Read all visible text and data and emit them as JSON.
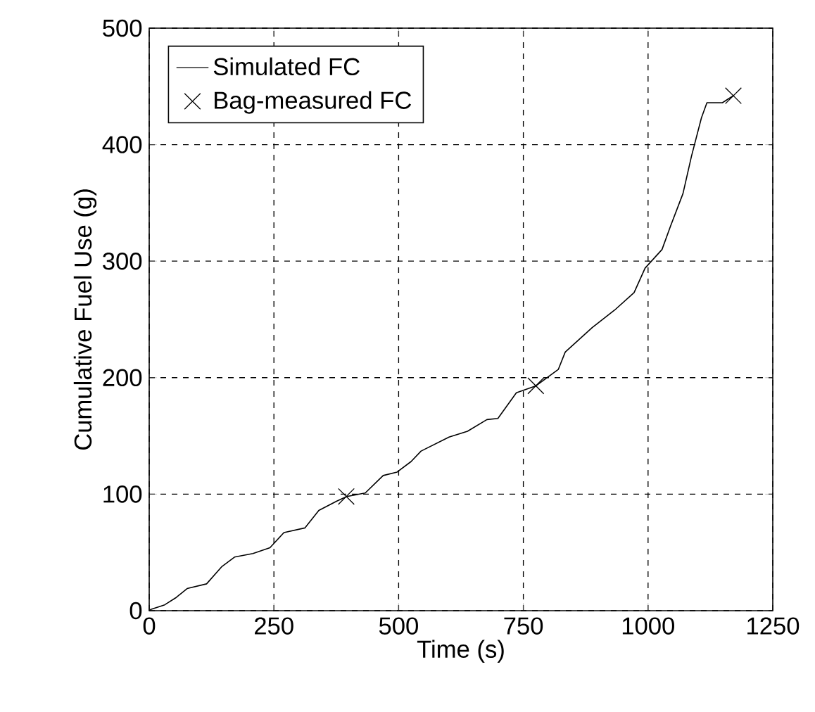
{
  "chart_data": {
    "type": "line",
    "xlabel": "Time (s)",
    "ylabel": "Cumulative Fuel Use (g)",
    "xlim": [
      0,
      1250
    ],
    "ylim": [
      0,
      500
    ],
    "xticks": [
      0,
      250,
      500,
      750,
      1000,
      1250
    ],
    "yticks": [
      0,
      100,
      200,
      300,
      400,
      500
    ],
    "grid": true,
    "legend": "top left",
    "series": [
      {
        "name": "Simulated FC",
        "color": "#000000",
        "line_style": "solid",
        "marker": "none",
        "x": [
          0,
          3,
          31,
          53,
          76,
          115,
          146,
          171,
          208,
          242,
          270,
          312,
          340,
          376,
          396,
          433,
          469,
          497,
          525,
          545,
          601,
          638,
          677,
          699,
          736,
          775,
          820,
          834,
          888,
          933,
          972,
          994,
          1028,
          1045,
          1070,
          1087,
          1107,
          1118,
          1149,
          1171
        ],
        "values": [
          0,
          1,
          5,
          11,
          19,
          23,
          38,
          46,
          49,
          54,
          67,
          71,
          86,
          94,
          98,
          101,
          116,
          119,
          128,
          137,
          149,
          154,
          164,
          165,
          187,
          193,
          207,
          222,
          243,
          258,
          273,
          294,
          310,
          330,
          358,
          390,
          423,
          436,
          436,
          442
        ]
      },
      {
        "name": "Bag-measured FC",
        "type": "scatter",
        "color": "#000000",
        "marker": "cross",
        "x": [
          395,
          775,
          1171
        ],
        "values": [
          98,
          193,
          442
        ]
      }
    ]
  }
}
